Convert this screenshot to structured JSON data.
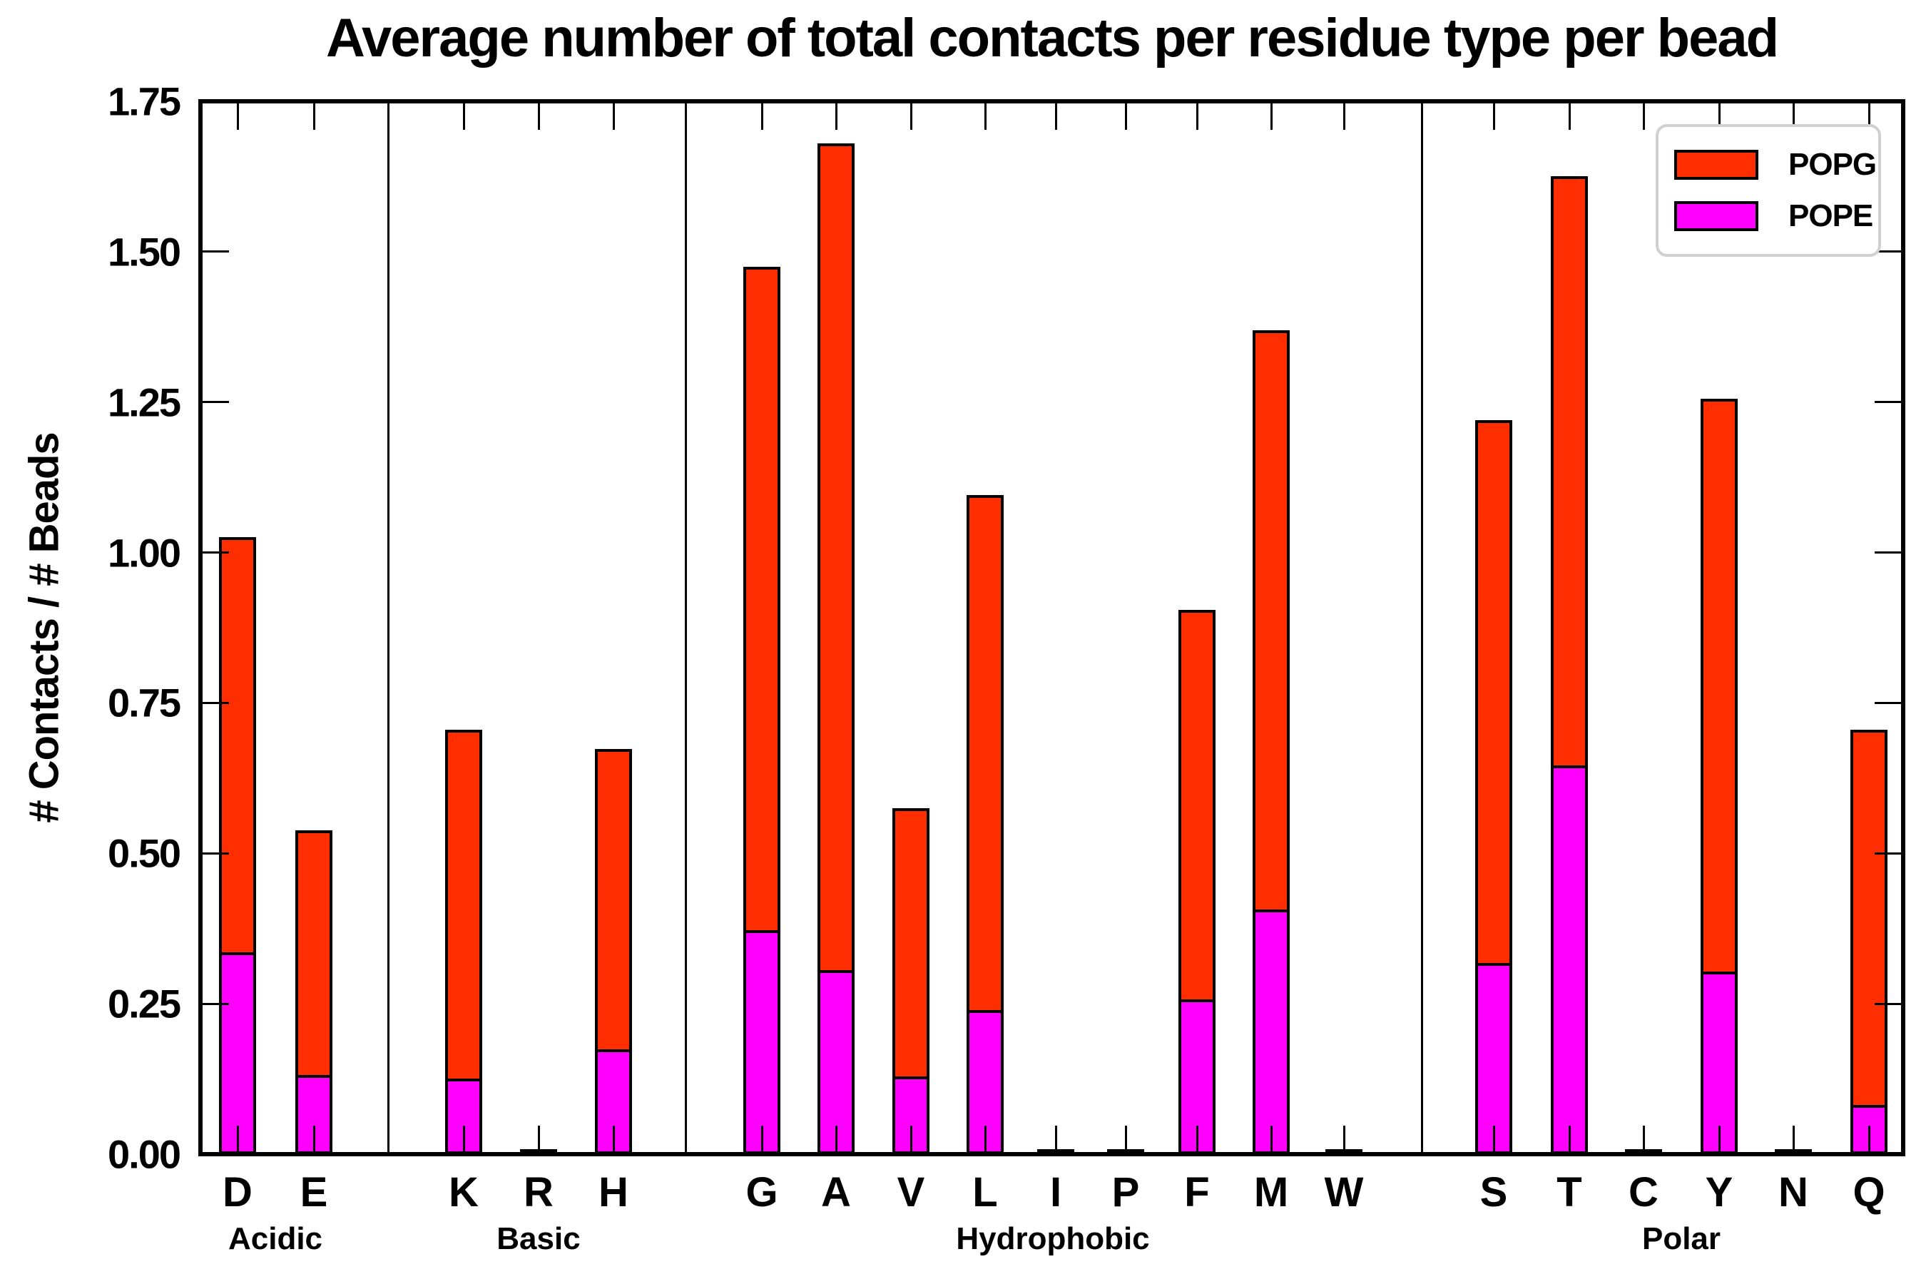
{
  "title": "Average number of total contacts per residue type per bead",
  "y_axis": {
    "label": "# Contacts / # Beads",
    "tick_labels": [
      "0.00",
      "0.25",
      "0.50",
      "0.75",
      "1.00",
      "1.25",
      "1.50",
      "1.75"
    ]
  },
  "legend": {
    "items": [
      {
        "label": "POPG",
        "color": "#ff2e00"
      },
      {
        "label": "POPE",
        "color": "#ff00ff"
      }
    ]
  },
  "colors": {
    "popg_red": "#ff2e00",
    "pope_magenta": "#ff00ff",
    "axis_black": "#000000",
    "legend_border_gray": "#d0d0d0"
  },
  "chart_data": {
    "type": "bar",
    "stacked": true,
    "title": "Average number of total contacts per residue type per bead",
    "xlabel": "",
    "ylabel": "# Contacts / # Beads",
    "ylim": [
      0,
      1.75
    ],
    "ytick_step": 0.25,
    "grid": false,
    "legend_position": "upper right",
    "categories": [
      "D",
      "E",
      "K",
      "R",
      "H",
      "G",
      "A",
      "V",
      "L",
      "I",
      "P",
      "F",
      "M",
      "W",
      "S",
      "T",
      "C",
      "Y",
      "N",
      "Q"
    ],
    "groups": [
      {
        "label": "Acidic",
        "residues": [
          "D",
          "E"
        ]
      },
      {
        "label": "Basic",
        "residues": [
          "K",
          "R",
          "H"
        ]
      },
      {
        "label": "Hydrophobic",
        "residues": [
          "G",
          "A",
          "V",
          "L",
          "I",
          "P",
          "F",
          "M",
          "W"
        ]
      },
      {
        "label": "Polar",
        "residues": [
          "S",
          "T",
          "C",
          "Y",
          "N",
          "Q"
        ]
      }
    ],
    "series": [
      {
        "name": "POPE",
        "color": "#ff00ff",
        "values": [
          0.334,
          0.129,
          0.123,
          0.0,
          0.172,
          0.37,
          0.303,
          0.127,
          0.237,
          0.0,
          0.0,
          0.255,
          0.405,
          0.0,
          0.315,
          0.645,
          0.0,
          0.301,
          0.0,
          0.078
        ]
      },
      {
        "name": "POPG",
        "color": "#ff2e00",
        "values": [
          0.691,
          0.409,
          0.582,
          0.005,
          0.501,
          1.105,
          1.377,
          0.448,
          0.858,
          0.005,
          0.005,
          0.65,
          0.965,
          0.005,
          0.905,
          0.98,
          0.005,
          0.954,
          0.005,
          0.627
        ]
      }
    ],
    "stack_totals": [
      1.025,
      0.538,
      0.705,
      0.005,
      0.673,
      1.475,
      1.68,
      0.575,
      1.095,
      0.005,
      0.005,
      0.905,
      1.37,
      0.005,
      1.22,
      1.625,
      0.005,
      1.255,
      0.005,
      0.705
    ]
  }
}
